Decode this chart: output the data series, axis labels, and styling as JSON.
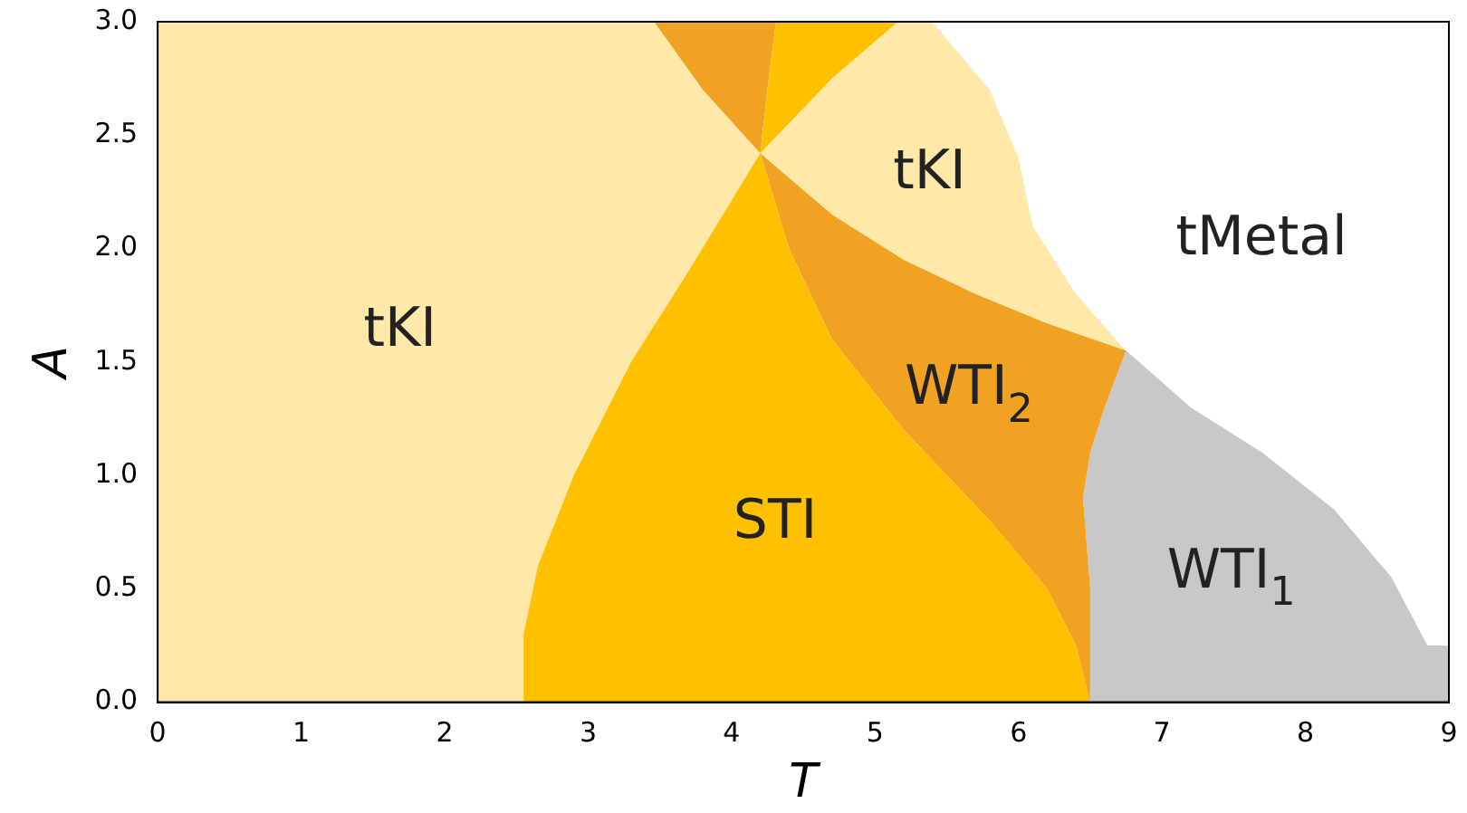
{
  "chart_data": {
    "type": "area",
    "xlabel": "T",
    "ylabel": "A",
    "xlim": [
      0,
      9
    ],
    "xticks": [
      0,
      1,
      2,
      3,
      4,
      5,
      6,
      7,
      8,
      9
    ],
    "ylim": [
      0,
      3
    ],
    "yticks": [
      {
        "value": 0,
        "label": "0.0"
      },
      {
        "value": 0.5,
        "label": "0.5"
      },
      {
        "value": 1,
        "label": "1.0"
      },
      {
        "value": 1.5,
        "label": "1.5"
      },
      {
        "value": 2,
        "label": "2.0"
      },
      {
        "value": 2.5,
        "label": "2.5"
      },
      {
        "value": 3,
        "label": "3.0"
      }
    ],
    "grid": false,
    "legend": false,
    "series": [
      {
        "name": "tKI",
        "color": "#ffe8a8",
        "x": [
          0,
          0,
          3.46,
          3.8,
          4.2,
          3.7,
          3.3,
          2.9,
          2.65,
          2.55,
          2.55
        ],
        "values": [
          0,
          3,
          3,
          2.7,
          2.42,
          1.9,
          1.5,
          1.0,
          0.6,
          0.3,
          0
        ]
      },
      {
        "name": "tKI",
        "color": "#ffe8a8",
        "x": [
          4.2,
          4.7,
          5.16,
          5.4,
          5.8,
          6.0,
          6.1,
          6.4,
          6.75,
          6.2,
          5.7,
          5.2,
          4.7
        ],
        "values": [
          2.42,
          2.75,
          3,
          3,
          2.7,
          2.4,
          2.1,
          1.8,
          1.55,
          1.67,
          1.8,
          1.95,
          2.15
        ]
      },
      {
        "name": "tMetal",
        "color": "#ffffff",
        "x": [
          5.4,
          5.8,
          6.0,
          6.1,
          6.4,
          6.75,
          7.2,
          7.7,
          8.2,
          8.6,
          8.85,
          9,
          9
        ],
        "values": [
          3,
          2.7,
          2.4,
          2.1,
          1.8,
          1.55,
          1.3,
          1.1,
          0.85,
          0.55,
          0.25,
          0.25,
          3
        ]
      },
      {
        "name": "WTI$_{1}$",
        "color": "#c8c8c8",
        "x": [
          6.5,
          6.5,
          6.45,
          6.5,
          6.6,
          6.75,
          7.2,
          7.7,
          8.2,
          8.6,
          8.85,
          9,
          9
        ],
        "values": [
          0,
          0.5,
          0.9,
          1.1,
          1.3,
          1.55,
          1.3,
          1.1,
          0.85,
          0.55,
          0.25,
          0.25,
          0
        ]
      },
      {
        "name": "WTI$_{2}$",
        "color": "#f2a222",
        "x": [
          4.2,
          4.7,
          5.2,
          5.7,
          6.2,
          6.75,
          6.6,
          6.5,
          6.45,
          6.5,
          6.5,
          6.4,
          6.2,
          5.8,
          5.2,
          4.7,
          4.4
        ],
        "values": [
          2.42,
          2.15,
          1.95,
          1.8,
          1.67,
          1.55,
          1.3,
          1.1,
          0.9,
          0.5,
          0,
          0.25,
          0.5,
          0.8,
          1.2,
          1.6,
          2.0
        ]
      },
      {
        "name": "STI",
        "color": "#ffc000",
        "x": [
          2.55,
          2.55,
          2.65,
          2.9,
          3.3,
          3.7,
          4.2,
          4.4,
          4.7,
          5.2,
          5.8,
          6.2,
          6.4,
          6.5
        ],
        "values": [
          0,
          0.3,
          0.6,
          1.0,
          1.5,
          1.9,
          2.42,
          2.0,
          1.6,
          1.2,
          0.8,
          0.5,
          0.25,
          0
        ]
      },
      {
        "color": "#f2a222",
        "x": [
          4.2,
          3.8,
          3.46,
          4.31,
          4.25
        ],
        "values": [
          2.42,
          2.7,
          3,
          3,
          2.7
        ]
      },
      {
        "color": "#ffc000",
        "x": [
          4.2,
          4.25,
          4.31,
          5.16,
          4.7
        ],
        "values": [
          2.42,
          2.7,
          3,
          3,
          2.75
        ]
      }
    ]
  }
}
